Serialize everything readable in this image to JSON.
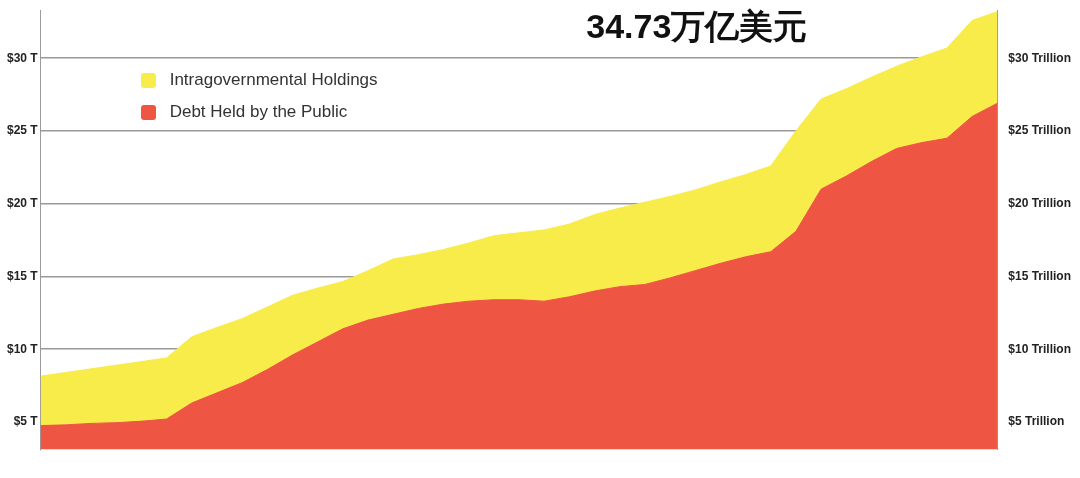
{
  "chart_data": {
    "type": "area",
    "stacked": true,
    "annotations": [
      "34.73万亿美元"
    ],
    "categories": [
      null,
      null,
      null,
      null,
      null,
      null,
      null,
      null,
      null,
      null,
      null,
      null,
      null,
      null,
      null,
      null,
      null,
      null,
      null,
      null,
      null,
      null,
      null,
      null,
      null,
      null,
      null,
      null,
      null,
      null,
      null,
      null,
      null,
      null,
      null,
      null,
      null,
      null,
      null
    ],
    "series": [
      {
        "name": "Debt Held by the Public",
        "color": "#ee5542",
        "values": [
          4.75,
          4.8,
          4.9,
          4.95,
          5.05,
          5.2,
          6.3,
          7.0,
          7.7,
          8.6,
          9.6,
          10.5,
          11.4,
          12.0,
          12.4,
          12.8,
          13.1,
          13.3,
          13.4,
          13.4,
          13.3,
          13.6,
          14.0,
          14.3,
          14.45,
          14.9,
          15.4,
          15.9,
          16.35,
          16.7,
          18.1,
          21.0,
          21.9,
          22.9,
          23.8,
          24.2,
          24.5,
          26.0,
          26.9
        ]
      },
      {
        "name": "Intragovernmental Holdings",
        "color": "#f7ec4a",
        "values": [
          3.4,
          3.6,
          3.75,
          3.95,
          4.1,
          4.2,
          4.55,
          4.5,
          4.4,
          4.3,
          4.1,
          3.7,
          3.25,
          3.4,
          3.8,
          3.7,
          3.75,
          4.0,
          4.4,
          4.6,
          4.9,
          5.0,
          5.25,
          5.4,
          5.65,
          5.6,
          5.55,
          5.6,
          5.65,
          5.9,
          6.9,
          6.2,
          6.0,
          5.8,
          5.65,
          5.9,
          6.2,
          6.6,
          6.3
        ]
      }
    ],
    "ylim": [
      3.1,
      33.3
    ],
    "yticks": [
      {
        "value": 5,
        "label": "$5 T"
      },
      {
        "value": 10,
        "label": "$10 T"
      },
      {
        "value": 15,
        "label": "$15 T"
      },
      {
        "value": 20,
        "label": "$20 T"
      },
      {
        "value": 25,
        "label": "$25 T"
      },
      {
        "value": 30,
        "label": "$30 T"
      }
    ],
    "y2lim": [
      3.1,
      33.3
    ],
    "y2ticks": [
      {
        "value": 5,
        "label": "$5 Trillion"
      },
      {
        "value": 10,
        "label": "$10 Trillion"
      },
      {
        "value": 15,
        "label": "$15 Trillion"
      },
      {
        "value": 20,
        "label": "$20 Trillion"
      },
      {
        "value": 25,
        "label": "$25 Trillion"
      },
      {
        "value": 30,
        "label": "$30 Trillion"
      }
    ],
    "grid": "y",
    "legend": "top left"
  }
}
